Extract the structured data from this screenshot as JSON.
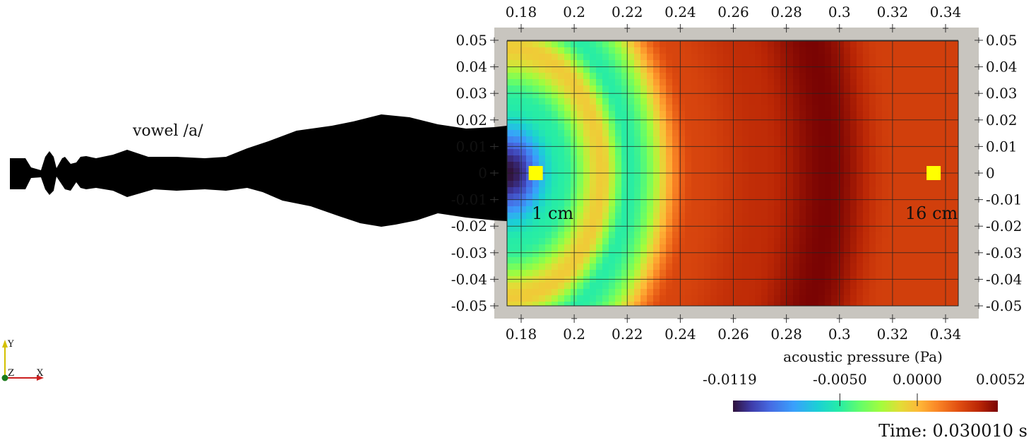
{
  "chart_data": {
    "type": "heatmap",
    "title": "",
    "colorbar": {
      "label": "acoustic pressure (Pa)",
      "tick_labels": [
        "-0.0119",
        "-0.0050",
        "0.0000",
        "0.0052"
      ],
      "ticks": [
        -0.0119,
        -0.005,
        0.0,
        0.0052
      ],
      "range": [
        -0.0119,
        0.0052
      ],
      "colormap": "turbo"
    },
    "x_ticks": [
      "0.18",
      "0.2",
      "0.22",
      "0.24",
      "0.26",
      "0.28",
      "0.3",
      "0.32",
      "0.34"
    ],
    "x_tick_values": [
      0.18,
      0.2,
      0.22,
      0.24,
      0.26,
      0.28,
      0.3,
      0.32,
      0.34
    ],
    "y_ticks": [
      "0.05",
      "0.04",
      "0.03",
      "0.02",
      "0.01",
      "0",
      "-0.01",
      "-0.02",
      "-0.03",
      "-0.04",
      "-0.05"
    ],
    "y_tick_values": [
      0.05,
      0.04,
      0.03,
      0.02,
      0.01,
      0,
      -0.01,
      -0.02,
      -0.03,
      -0.04,
      -0.05
    ],
    "xlim": [
      0.175,
      0.337
    ],
    "ylim": [
      -0.05,
      0.05
    ],
    "source_center": [
      0.1755,
      0.0
    ],
    "wavefronts": [
      {
        "radius": 0.0,
        "amplitude": -0.0119
      },
      {
        "radius": 0.02,
        "amplitude": -0.005
      },
      {
        "radius": 0.035,
        "amplitude": -0.0005
      },
      {
        "radius": 0.045,
        "amplitude": -0.005
      },
      {
        "radius": 0.07,
        "amplitude": 0.003
      },
      {
        "radius": 0.095,
        "amplitude": 0.0038
      },
      {
        "radius": 0.12,
        "amplitude": 0.0052
      },
      {
        "radius": 0.145,
        "amplitude": 0.0032
      }
    ],
    "grid": true,
    "markers": [
      {
        "label": "1 cm",
        "x": 0.1855,
        "y": 0.0,
        "color": "#ffff00"
      },
      {
        "label": "16 cm",
        "x": 0.3355,
        "y": 0.0,
        "color": "#ffff00"
      }
    ]
  },
  "tract_label": "vowel /a/",
  "time_label": "Time: 0.030010 s",
  "axes_triad": {
    "y": "Y",
    "z": "Z",
    "x": "X"
  },
  "colors": {
    "frame": "#c8c5bf",
    "tract": "#000000",
    "marker": "#ffff00",
    "triad_y": "#d4c000",
    "triad_x": "#cc2020",
    "triad_z": "#1a7a1a"
  }
}
